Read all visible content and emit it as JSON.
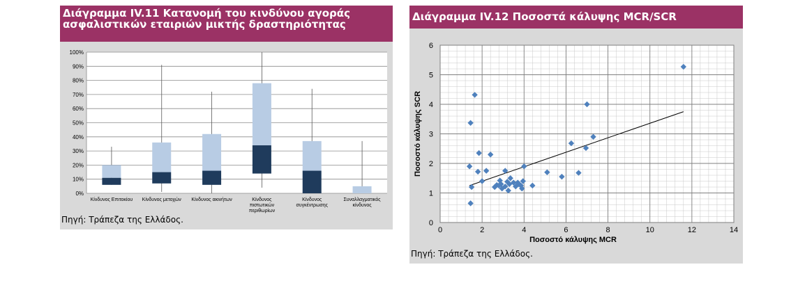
{
  "left_panel": {
    "title_line1": "Διάγραμμα IV.11 Κατανομή του κινδύνου αγοράς",
    "title_line2": "ασφαλιστικών εταιριών μικτής δραστηριότητας",
    "source": "Πηγή: Τράπεζα της Ελλάδος."
  },
  "right_panel": {
    "title": "Διάγραμμα IV.12 Ποσοστά κάλυψης MCR/SCR",
    "source": "Πηγή: Τράπεζα της Ελλάδος."
  },
  "colors": {
    "title_bg": "#9b3265",
    "panel_bg": "#d9d9d9",
    "box_light": "#b8cce4",
    "box_dark": "#1f3b5c",
    "point": "#4f81bd",
    "trend": "#000000"
  },
  "chart_data": [
    {
      "type": "boxplot",
      "yticks": [
        "0%",
        "10%",
        "20%",
        "30%",
        "40%",
        "50%",
        "60%",
        "70%",
        "80%",
        "90%",
        "100%"
      ],
      "ylim": [
        0,
        100
      ],
      "grid": true,
      "categories": [
        [
          "Κίνδυνος Επιτοκίου"
        ],
        [
          "Κίνδυνος μετοχών"
        ],
        [
          "Κίνδυνος ακινήτων"
        ],
        [
          "Κίνδυνος",
          "πιστωτικών",
          "περιθωρίων"
        ],
        [
          "Κίνδυνος",
          "συγκέντρωσης"
        ],
        [
          "Συναλλαγματικός",
          "κίνδυνος"
        ]
      ],
      "boxes": [
        {
          "min": 6,
          "q1": 6,
          "median": 11,
          "q3": 20,
          "max": 33
        },
        {
          "min": 1,
          "q1": 7,
          "median": 15,
          "q3": 36,
          "max": 91
        },
        {
          "min": 0,
          "q1": 6,
          "median": 16,
          "q3": 42,
          "max": 72
        },
        {
          "min": 4,
          "q1": 14,
          "median": 34,
          "q3": 78,
          "max": 100
        },
        {
          "min": 0,
          "q1": 0,
          "median": 16,
          "q3": 37,
          "max": 74
        },
        {
          "min": 0,
          "q1": 0,
          "median": 0,
          "q3": 5,
          "max": 37
        }
      ]
    },
    {
      "type": "scatter",
      "xlabel": "Ποσοστό κάλυψης MCR",
      "ylabel": "Ποσοστό κάλυψης SCR",
      "xlim": [
        0,
        14
      ],
      "ylim": [
        0,
        6
      ],
      "xticks": [
        0,
        2,
        4,
        6,
        8,
        10,
        12,
        14
      ],
      "yticks": [
        0,
        1,
        2,
        3,
        4,
        5,
        6
      ],
      "grid": true,
      "points": [
        [
          1.4,
          1.9
        ],
        [
          1.45,
          3.37
        ],
        [
          1.5,
          1.2
        ],
        [
          1.45,
          0.65
        ],
        [
          1.65,
          4.32
        ],
        [
          1.8,
          1.72
        ],
        [
          1.85,
          2.35
        ],
        [
          2.0,
          1.4
        ],
        [
          2.2,
          1.75
        ],
        [
          2.4,
          2.3
        ],
        [
          2.6,
          1.2
        ],
        [
          2.7,
          1.27
        ],
        [
          2.8,
          1.25
        ],
        [
          2.85,
          1.42
        ],
        [
          2.9,
          1.3
        ],
        [
          2.95,
          1.15
        ],
        [
          3.1,
          1.75
        ],
        [
          3.1,
          1.22
        ],
        [
          3.2,
          1.38
        ],
        [
          3.25,
          1.08
        ],
        [
          3.3,
          1.3
        ],
        [
          3.35,
          1.5
        ],
        [
          3.5,
          1.35
        ],
        [
          3.6,
          1.22
        ],
        [
          3.7,
          1.35
        ],
        [
          3.75,
          1.3
        ],
        [
          3.85,
          1.25
        ],
        [
          3.9,
          1.15
        ],
        [
          3.95,
          1.4
        ],
        [
          4.0,
          1.9
        ],
        [
          4.4,
          1.25
        ],
        [
          5.1,
          1.7
        ],
        [
          5.8,
          1.55
        ],
        [
          6.25,
          2.68
        ],
        [
          6.6,
          1.68
        ],
        [
          6.95,
          2.52
        ],
        [
          7.0,
          4.0
        ],
        [
          7.3,
          2.9
        ],
        [
          11.6,
          5.27
        ]
      ],
      "trendline": [
        [
          1.4,
          1.25
        ],
        [
          11.6,
          3.75
        ]
      ]
    }
  ]
}
